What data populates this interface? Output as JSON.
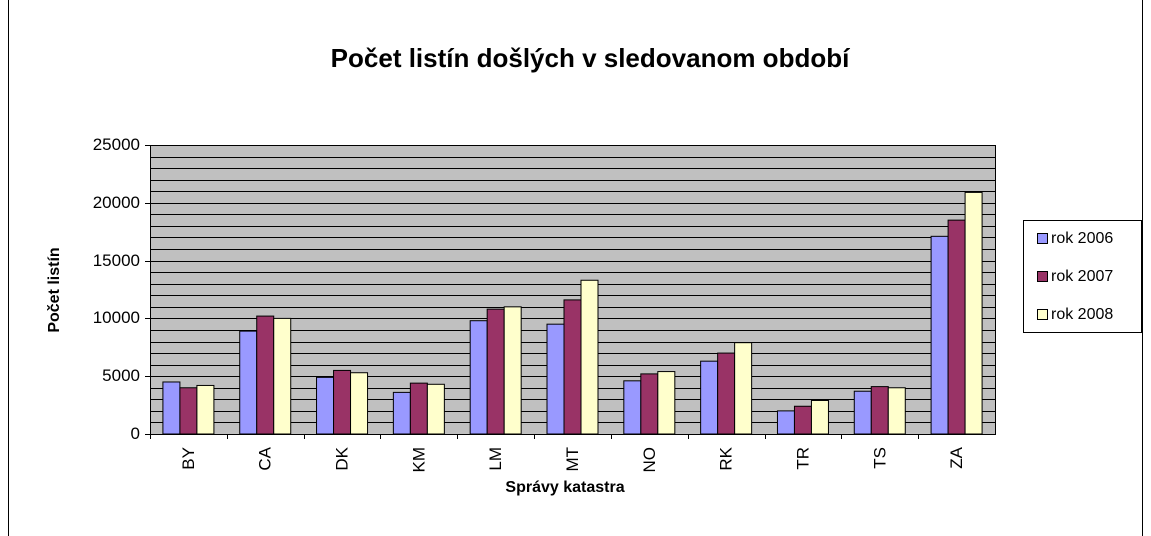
{
  "chart_data": {
    "type": "bar",
    "title": "Počet listín došlých v sledovanom období",
    "x_label": "Správy katastra",
    "y_label": "Počet listín",
    "categories": [
      "BY",
      "CA",
      "DK",
      "KM",
      "LM",
      "MT",
      "NO",
      "RK",
      "TR",
      "TS",
      "ZA"
    ],
    "series": [
      {
        "name": "rok 2006",
        "color": "#9999ff",
        "values": [
          4500,
          8900,
          4900,
          3600,
          9800,
          9500,
          4600,
          6300,
          2000,
          3700,
          17100
        ]
      },
      {
        "name": "rok 2007",
        "color": "#993366",
        "values": [
          4000,
          10200,
          5500,
          4400,
          10800,
          11600,
          5200,
          7000,
          2400,
          4100,
          18500
        ]
      },
      {
        "name": "rok 2008",
        "color": "#ffffcc",
        "values": [
          4200,
          10000,
          5300,
          4300,
          11000,
          13300,
          5400,
          7900,
          2900,
          4000,
          20900
        ]
      }
    ],
    "ylim": [
      0,
      25000
    ],
    "yticks": [
      0,
      5000,
      10000,
      15000,
      20000,
      25000
    ],
    "minor_yticks": [
      1000,
      2000,
      3000,
      4000,
      6000,
      7000,
      8000,
      9000,
      11000,
      12000,
      13000,
      14000,
      16000,
      17000,
      18000,
      19000,
      21000,
      22000,
      23000,
      24000
    ],
    "grid": true,
    "plot_background": "#c0c0c0",
    "legend": "right"
  }
}
